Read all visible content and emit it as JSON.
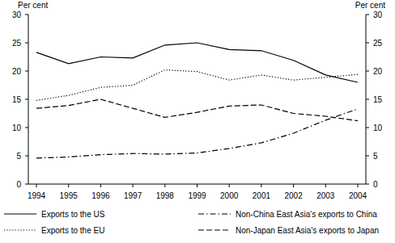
{
  "chart_data": {
    "type": "line",
    "y_label": "Per cent",
    "y2_label": "Per cent",
    "categories": [
      "1994",
      "1995",
      "1996",
      "1997",
      "1998",
      "1999",
      "2000",
      "2001",
      "2002",
      "2003",
      "2004"
    ],
    "ylim": [
      0,
      30
    ],
    "yticks": [
      0,
      5,
      10,
      15,
      20,
      25,
      30
    ],
    "y2lim": [
      0,
      30
    ],
    "y2ticks": [
      0,
      5,
      10,
      15,
      20,
      25,
      30
    ],
    "grid": false,
    "legend": "bottom",
    "series": [
      {
        "name": "Exports to the US",
        "color": "#000000",
        "line_style": "solid",
        "values": [
          23.3,
          21.3,
          22.5,
          22.3,
          24.6,
          25.0,
          23.8,
          23.6,
          21.9,
          19.3,
          18.0
        ]
      },
      {
        "name": "Exports to the EU",
        "color": "#000000",
        "line_style": "dotted",
        "values": [
          14.8,
          15.7,
          17.1,
          17.5,
          20.2,
          19.9,
          18.4,
          19.3,
          18.4,
          18.9,
          19.4
        ]
      },
      {
        "name": "Non-China East Asia's exports to China",
        "color": "#000000",
        "line_style": "dashdot",
        "values": [
          4.6,
          4.8,
          5.2,
          5.4,
          5.3,
          5.5,
          6.3,
          7.3,
          9.0,
          11.3,
          13.3
        ]
      },
      {
        "name": "Non-Japan East Asia's exports to Japan",
        "color": "#000000",
        "line_style": "dashed",
        "values": [
          13.4,
          13.9,
          15.0,
          13.4,
          11.8,
          12.7,
          13.8,
          14.0,
          12.5,
          12.0,
          11.2
        ]
      }
    ]
  }
}
